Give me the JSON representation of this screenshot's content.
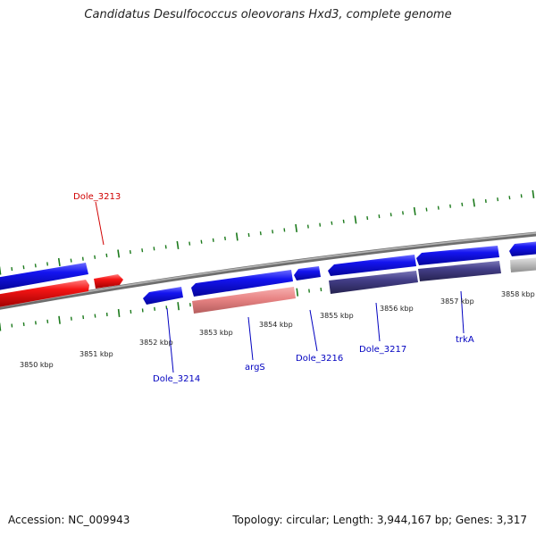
{
  "title": "Candidatus Desulfococcus oleovorans Hxd3, complete genome",
  "footer": {
    "accession": "Accession: NC_009943",
    "summary": "Topology: circular; Length: 3,944,167 bp; Genes: 3,317"
  },
  "colors": {
    "forward_gene": "#0b0be8",
    "reverse_gene_red": "#f20d0d",
    "rna_gene": "#e88080",
    "operon_gene": "#3e3a80",
    "grey_gene": "#b8b8b8",
    "backbone": "#8c8c8c",
    "tick": "#1c7a1c",
    "label_red": "#d00000",
    "label_blue": "#0000c0"
  },
  "ticks": [
    {
      "label": "3850 kbp"
    },
    {
      "label": "3851 kbp"
    },
    {
      "label": "3852 kbp"
    },
    {
      "label": "3853 kbp"
    },
    {
      "label": "3854 kbp"
    },
    {
      "label": "3855 kbp"
    },
    {
      "label": "3856 kbp"
    },
    {
      "label": "3857 kbp"
    },
    {
      "label": "3858 kbp"
    }
  ],
  "gene_labels": [
    {
      "text": "Dole_3213",
      "color": "red"
    },
    {
      "text": "Dole_3214",
      "color": "blue"
    },
    {
      "text": "argS",
      "color": "blue"
    },
    {
      "text": "Dole_3216",
      "color": "blue"
    },
    {
      "text": "Dole_3217",
      "color": "blue"
    },
    {
      "text": "trkA",
      "color": "blue"
    }
  ]
}
